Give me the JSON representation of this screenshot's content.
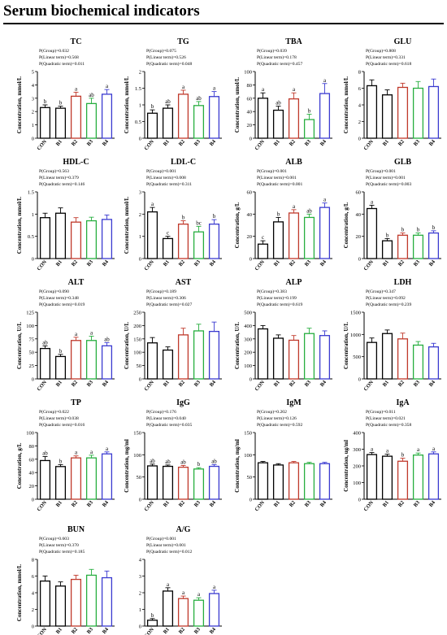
{
  "page": {
    "title": "Serum biochemical indicators"
  },
  "palette": [
    "#000000",
    "#000000",
    "#c0392b",
    "#27ae3f",
    "#3a3ad0"
  ],
  "chart_data": [
    {
      "type": "bar",
      "title": "TC",
      "ylabel": "Concentration, mmol/L",
      "ylim": [
        0,
        5
      ],
      "yticks": [
        0,
        1,
        2,
        3,
        4,
        5
      ],
      "categories": [
        "CON",
        "B1",
        "B2",
        "B3",
        "B4"
      ],
      "values": [
        2.3,
        2.25,
        3.15,
        2.6,
        3.3
      ],
      "errors": [
        0.2,
        0.15,
        0.3,
        0.4,
        0.35
      ],
      "letters": [
        "b",
        "b",
        "a",
        "ab",
        "a"
      ],
      "stats": [
        "P(Group)=0.032",
        "P(Linear term)=0.568",
        "P(Quadratic term)=0.011"
      ]
    },
    {
      "type": "bar",
      "title": "TG",
      "ylabel": "Concentration, mmol/L",
      "ylim": [
        0,
        2.0
      ],
      "yticks": [
        0,
        0.5,
        1.0,
        1.5,
        2.0
      ],
      "categories": [
        "CON",
        "B1",
        "B2",
        "B3",
        "B4"
      ],
      "values": [
        0.75,
        0.9,
        1.32,
        0.98,
        1.25
      ],
      "errors": [
        0.1,
        0.1,
        0.12,
        0.12,
        0.15
      ],
      "letters": [
        "b",
        "ab",
        "a",
        "ab",
        "a"
      ],
      "stats": [
        "P(Group)=0.075",
        "P(Linear term)=0.526",
        "P(Quadratic term)=0.048"
      ]
    },
    {
      "type": "bar",
      "title": "TBA",
      "ylabel": "Concentration, umol/L",
      "ylim": [
        0,
        100
      ],
      "yticks": [
        0,
        20,
        40,
        60,
        80,
        100
      ],
      "categories": [
        "CON",
        "B1",
        "B2",
        "B3",
        "B4"
      ],
      "values": [
        60,
        42,
        59,
        28,
        67
      ],
      "errors": [
        8,
        6,
        9,
        8,
        15
      ],
      "letters": [
        "a",
        "ab",
        "a",
        "b",
        "a"
      ],
      "stats": [
        "P(Group)=0.039",
        "P(Linear term)=0.178",
        "P(Quadratic term)=0.457"
      ]
    },
    {
      "type": "bar",
      "title": "GLU",
      "ylabel": "Concentration, mmol/L",
      "ylim": [
        0,
        8
      ],
      "yticks": [
        0,
        2,
        4,
        6,
        8
      ],
      "categories": [
        "CON",
        "B1",
        "B2",
        "B3",
        "B4"
      ],
      "values": [
        6.3,
        5.2,
        6.1,
        6.0,
        6.2
      ],
      "errors": [
        0.7,
        0.6,
        0.5,
        0.8,
        0.9
      ],
      "letters": [
        "",
        "",
        "",
        "",
        ""
      ],
      "stats": [
        "P(Group)=0.808",
        "P(Linear term)=0.331",
        "P(Quadratic term)=0.618"
      ]
    },
    {
      "type": "bar",
      "title": "HDL-C",
      "ylabel": "Concentration, mmol/L",
      "ylim": [
        0,
        1.5
      ],
      "yticks": [
        0,
        0.5,
        1.0,
        1.5
      ],
      "categories": [
        "CON",
        "B1",
        "B2",
        "B3",
        "B4"
      ],
      "values": [
        0.92,
        1.02,
        0.82,
        0.85,
        0.88
      ],
      "errors": [
        0.1,
        0.12,
        0.1,
        0.08,
        0.1
      ],
      "letters": [
        "",
        "",
        "",
        "",
        ""
      ],
      "stats": [
        "P(Group)=0.563",
        "P(Linear term)=0.379",
        "P(Quadratic term)=0.146"
      ]
    },
    {
      "type": "bar",
      "title": "LDL-C",
      "ylabel": "Concentration, mmol/L",
      "ylim": [
        0,
        3
      ],
      "yticks": [
        0,
        1,
        2,
        3
      ],
      "categories": [
        "CON",
        "B1",
        "B2",
        "B3",
        "B4"
      ],
      "values": [
        2.1,
        0.9,
        1.55,
        1.2,
        1.55
      ],
      "errors": [
        0.2,
        0.1,
        0.15,
        0.25,
        0.2
      ],
      "letters": [
        "a",
        "c",
        "b",
        "bc",
        "b"
      ],
      "stats": [
        "P(Group)=0.001",
        "P(Linear term)=0.008",
        "P(Quadratic term)=0.311"
      ]
    },
    {
      "type": "bar",
      "title": "ALB",
      "ylabel": "Concentration, g/L",
      "ylim": [
        0,
        60
      ],
      "yticks": [
        0,
        20,
        40,
        60
      ],
      "categories": [
        "CON",
        "B1",
        "B2",
        "B3",
        "B4"
      ],
      "values": [
        13,
        33,
        41,
        37,
        46
      ],
      "errors": [
        3,
        4,
        3,
        3,
        4
      ],
      "letters": [
        "c",
        "b",
        "a",
        "ab",
        "a"
      ],
      "stats": [
        "P(Group)=0.001",
        "P(Linear term)=0.001",
        "P(Quadratic term)=0.001"
      ]
    },
    {
      "type": "bar",
      "title": "GLB",
      "ylabel": "Concentration, g/L",
      "ylim": [
        0,
        60
      ],
      "yticks": [
        0,
        20,
        40,
        60
      ],
      "categories": [
        "CON",
        "B1",
        "B2",
        "B3",
        "B4"
      ],
      "values": [
        45,
        16,
        21,
        21,
        23
      ],
      "errors": [
        3,
        2,
        2,
        2,
        2
      ],
      "letters": [
        "a",
        "b",
        "b",
        "b",
        "b"
      ],
      "stats": [
        "P(Group)=0.001",
        "P(Linear term)=0.001",
        "P(Quadratic term)=0.003"
      ]
    },
    {
      "type": "bar",
      "title": "ALT",
      "ylabel": "Concentration, U/L",
      "ylim": [
        0,
        125
      ],
      "yticks": [
        0,
        25,
        50,
        75,
        100,
        125
      ],
      "categories": [
        "CON",
        "B1",
        "B2",
        "B3",
        "B4"
      ],
      "values": [
        57,
        42,
        72,
        72,
        62
      ],
      "errors": [
        5,
        4,
        6,
        8,
        6
      ],
      "letters": [
        "ab",
        "b",
        "a",
        "a",
        "ab"
      ],
      "stats": [
        "P(Group)=0.090",
        "P(Linear term)=0.348",
        "P(Quadratic term)=0.019"
      ]
    },
    {
      "type": "bar",
      "title": "AST",
      "ylabel": "Concentration, U/L",
      "ylim": [
        0,
        250
      ],
      "yticks": [
        0,
        50,
        100,
        150,
        200,
        250
      ],
      "categories": [
        "CON",
        "B1",
        "B2",
        "B3",
        "B4"
      ],
      "values": [
        135,
        108,
        165,
        180,
        178
      ],
      "errors": [
        20,
        12,
        25,
        25,
        35
      ],
      "letters": [
        "",
        "",
        "",
        "",
        ""
      ],
      "stats": [
        "P(Group)=0.189",
        "P(Linear term)=0.306",
        "P(Quadratic term)=0.027"
      ]
    },
    {
      "type": "bar",
      "title": "ALP",
      "ylabel": "Concentration, U/L",
      "ylim": [
        0,
        500
      ],
      "yticks": [
        0,
        100,
        200,
        300,
        400,
        500
      ],
      "categories": [
        "CON",
        "B1",
        "B2",
        "B3",
        "B4"
      ],
      "values": [
        375,
        305,
        290,
        340,
        325
      ],
      "errors": [
        25,
        25,
        35,
        40,
        35
      ],
      "letters": [
        "",
        "",
        "",
        "",
        ""
      ],
      "stats": [
        "P(Group)=0.383",
        "P(Linear term)=0.199",
        "P(Quadratic term)=0.619"
      ]
    },
    {
      "type": "bar",
      "title": "LDH",
      "ylabel": "Concentration, U/L",
      "ylim": [
        0,
        1500
      ],
      "yticks": [
        0,
        500,
        1000,
        1500
      ],
      "categories": [
        "CON",
        "B1",
        "B2",
        "B3",
        "B4"
      ],
      "values": [
        820,
        1020,
        900,
        760,
        720
      ],
      "errors": [
        100,
        80,
        130,
        80,
        80
      ],
      "letters": [
        "",
        "",
        "",
        "",
        ""
      ],
      "stats": [
        "P(Group)=0.347",
        "P(Linear term)=0.092",
        "P(Quadratic term)=0.239"
      ]
    },
    {
      "type": "bar",
      "title": "TP",
      "ylabel": "Concentration, g/L",
      "ylim": [
        0,
        100
      ],
      "yticks": [
        0,
        20,
        40,
        60,
        80,
        100
      ],
      "categories": [
        "CON",
        "B1",
        "B2",
        "B3",
        "B4"
      ],
      "values": [
        58,
        49,
        62,
        62,
        68
      ],
      "errors": [
        6,
        3,
        3,
        4,
        3
      ],
      "letters": [
        "ab",
        "b",
        "a",
        "a",
        "a"
      ],
      "stats": [
        "P(Group)=0.022",
        "P(Linear term)=0.038",
        "P(Quadratic term)=0.016"
      ]
    },
    {
      "type": "bar",
      "title": "IgG",
      "ylabel": "Concentration, mg/ml",
      "ylim": [
        0,
        150
      ],
      "yticks": [
        0,
        50,
        100,
        150
      ],
      "categories": [
        "CON",
        "B1",
        "B2",
        "B3",
        "B4"
      ],
      "values": [
        75,
        74,
        72,
        68,
        74
      ],
      "errors": [
        4,
        3,
        4,
        3,
        4
      ],
      "letters": [
        "ab",
        "ab",
        "ab",
        "b",
        "ab"
      ],
      "stats": [
        "P(Group)=0.176",
        "P(Linear term)=0.040",
        "P(Quadratic term)=0.035"
      ]
    },
    {
      "type": "bar",
      "title": "IgM",
      "ylabel": "Concentration, mg/ml",
      "ylim": [
        0,
        150
      ],
      "yticks": [
        0,
        50,
        100,
        150
      ],
      "categories": [
        "CON",
        "B1",
        "B2",
        "B3",
        "B4"
      ],
      "values": [
        82,
        77,
        82,
        80,
        80
      ],
      "errors": [
        3,
        3,
        3,
        3,
        3
      ],
      "letters": [
        "",
        "",
        "",
        "",
        ""
      ],
      "stats": [
        "P(Group)=0.202",
        "P(Linear term)=0.126",
        "P(Quadratic term)=0.592"
      ]
    },
    {
      "type": "bar",
      "title": "IgA",
      "ylabel": "Concentration, ug/ml",
      "ylim": [
        0,
        400
      ],
      "yticks": [
        0,
        100,
        200,
        300,
        400
      ],
      "categories": [
        "CON",
        "B1",
        "B2",
        "B3",
        "B4"
      ],
      "values": [
        268,
        258,
        228,
        265,
        272
      ],
      "errors": [
        12,
        12,
        18,
        12,
        12
      ],
      "letters": [
        "a",
        "a",
        "b",
        "a",
        "a"
      ],
      "stats": [
        "P(Group)=0.011",
        "P(Linear term)=0.021",
        "P(Quadratic term)=0.358"
      ]
    },
    {
      "type": "bar",
      "title": "BUN",
      "ylabel": "Concentration, mmol/L",
      "ylim": [
        0,
        8
      ],
      "yticks": [
        0,
        2,
        4,
        6,
        8
      ],
      "categories": [
        "CON",
        "B1",
        "B2",
        "B3",
        "B4"
      ],
      "values": [
        5.4,
        4.8,
        5.6,
        6.1,
        5.8
      ],
      "errors": [
        0.6,
        0.5,
        0.5,
        0.7,
        0.8
      ],
      "letters": [
        "",
        "",
        "",
        "",
        ""
      ],
      "stats": [
        "P(Group)=0.603",
        "P(Linear term)=0.370",
        "P(Quadratic term)=0.185"
      ]
    },
    {
      "type": "bar",
      "title": "A/G",
      "ylabel": "",
      "ylim": [
        0,
        4
      ],
      "yticks": [
        0,
        1,
        2,
        3,
        4
      ],
      "categories": [
        "CON",
        "B1",
        "B2",
        "B3",
        "B4"
      ],
      "values": [
        0.35,
        2.1,
        1.65,
        1.55,
        1.95
      ],
      "errors": [
        0.1,
        0.2,
        0.15,
        0.15,
        0.2
      ],
      "letters": [
        "b",
        "a",
        "a",
        "a",
        "a"
      ],
      "stats": [
        "P(Group)=0.001",
        "P(Linear term)=0.001",
        "P(Quadratic term)=0.012"
      ]
    }
  ]
}
